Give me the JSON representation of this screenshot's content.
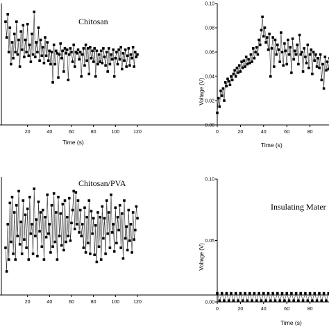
{
  "chart_data": [
    {
      "id": "p1",
      "type": "line",
      "title": "Chitosan",
      "xlabel": "Time (s)",
      "ylabel": "",
      "xlim": [
        0,
        120
      ],
      "xticks": [
        20,
        40,
        60,
        80,
        100,
        120
      ],
      "ylim": [
        0.0,
        0.1
      ],
      "yticks": [],
      "series": [
        {
          "x": [
            0,
            1,
            2,
            3,
            4,
            5,
            6,
            7,
            8,
            9,
            10,
            11,
            12,
            13,
            14,
            15,
            16,
            17,
            18,
            19,
            20,
            21,
            22,
            23,
            24,
            25,
            26,
            27,
            28,
            29,
            30,
            31,
            32,
            33,
            34,
            35,
            36,
            37,
            38,
            39,
            40,
            41,
            42,
            43,
            44,
            45,
            46,
            47,
            48,
            49,
            50,
            51,
            52,
            53,
            54,
            55,
            56,
            57,
            58,
            59,
            60,
            61,
            62,
            63,
            64,
            65,
            66,
            67,
            68,
            69,
            70,
            71,
            72,
            73,
            74,
            75,
            76,
            77,
            78,
            79,
            80,
            81,
            82,
            83,
            84,
            85,
            86,
            87,
            88,
            89,
            90,
            91,
            92,
            93,
            94,
            95,
            96,
            97,
            98,
            99,
            100,
            101,
            102,
            103,
            104,
            105,
            106,
            107,
            108,
            109,
            110,
            111,
            112,
            113,
            114,
            115,
            116,
            117,
            118,
            119,
            120
          ],
          "y": [
            0.085,
            0.072,
            0.091,
            0.06,
            0.08,
            0.05,
            0.068,
            0.055,
            0.075,
            0.06,
            0.085,
            0.058,
            0.07,
            0.048,
            0.077,
            0.062,
            0.082,
            0.056,
            0.07,
            0.06,
            0.083,
            0.057,
            0.066,
            0.052,
            0.075,
            0.058,
            0.093,
            0.056,
            0.068,
            0.06,
            0.08,
            0.053,
            0.07,
            0.057,
            0.064,
            0.051,
            0.072,
            0.057,
            0.068,
            0.053,
            0.061,
            0.05,
            0.06,
            0.035,
            0.066,
            0.05,
            0.061,
            0.059,
            0.039,
            0.058,
            0.067,
            0.055,
            0.061,
            0.044,
            0.063,
            0.059,
            0.062,
            0.037,
            0.058,
            0.063,
            0.06,
            0.052,
            0.066,
            0.048,
            0.06,
            0.059,
            0.062,
            0.054,
            0.06,
            0.04,
            0.058,
            0.063,
            0.049,
            0.066,
            0.053,
            0.063,
            0.042,
            0.064,
            0.055,
            0.061,
            0.052,
            0.063,
            0.04,
            0.061,
            0.05,
            0.058,
            0.052,
            0.061,
            0.051,
            0.063,
            0.056,
            0.049,
            0.06,
            0.044,
            0.063,
            0.05,
            0.058,
            0.054,
            0.062,
            0.04,
            0.055,
            0.06,
            0.05,
            0.062,
            0.054,
            0.064,
            0.046,
            0.059,
            0.053,
            0.062,
            0.048,
            0.057,
            0.063,
            0.049,
            0.058,
            0.055,
            0.064,
            0.048,
            0.06,
            0.056,
            0.058
          ]
        }
      ]
    },
    {
      "id": "p2",
      "type": "line",
      "title": "",
      "xlabel": "Time (s)",
      "ylabel": "Voltage (V)",
      "xlim": [
        0,
        100
      ],
      "xticks": [
        0,
        20,
        40,
        60,
        80
      ],
      "ylim": [
        0.0,
        0.1
      ],
      "yticks": [
        "0.00",
        "0.02",
        "0.04",
        "0.06",
        "0.08",
        "0.10"
      ],
      "series": [
        {
          "x": [
            0,
            1,
            2,
            3,
            4,
            5,
            6,
            7,
            8,
            9,
            10,
            11,
            12,
            13,
            14,
            15,
            16,
            17,
            18,
            19,
            20,
            21,
            22,
            23,
            24,
            25,
            26,
            27,
            28,
            29,
            30,
            31,
            32,
            33,
            34,
            35,
            36,
            37,
            38,
            39,
            40,
            41,
            42,
            43,
            44,
            45,
            46,
            47,
            48,
            49,
            50,
            51,
            52,
            53,
            54,
            55,
            56,
            57,
            58,
            59,
            60,
            61,
            62,
            63,
            64,
            65,
            66,
            67,
            68,
            69,
            70,
            71,
            72,
            73,
            74,
            75,
            76,
            77,
            78,
            79,
            80,
            81,
            82,
            83,
            84,
            85,
            86,
            87,
            88,
            89,
            90,
            91,
            92,
            93,
            94,
            95,
            96,
            97,
            98,
            99,
            100
          ],
          "y": [
            0.01,
            0.022,
            0.015,
            0.028,
            0.024,
            0.03,
            0.02,
            0.035,
            0.032,
            0.038,
            0.036,
            0.033,
            0.04,
            0.037,
            0.042,
            0.045,
            0.04,
            0.047,
            0.043,
            0.049,
            0.044,
            0.052,
            0.047,
            0.053,
            0.048,
            0.056,
            0.05,
            0.054,
            0.051,
            0.058,
            0.052,
            0.063,
            0.055,
            0.06,
            0.064,
            0.058,
            0.07,
            0.066,
            0.078,
            0.089,
            0.073,
            0.08,
            0.068,
            0.072,
            0.062,
            0.075,
            0.04,
            0.063,
            0.072,
            0.048,
            0.07,
            0.058,
            0.066,
            0.062,
            0.052,
            0.076,
            0.06,
            0.049,
            0.067,
            0.061,
            0.05,
            0.07,
            0.058,
            0.064,
            0.043,
            0.071,
            0.054,
            0.061,
            0.058,
            0.066,
            0.05,
            0.074,
            0.058,
            0.06,
            0.044,
            0.063,
            0.056,
            0.051,
            0.066,
            0.047,
            0.058,
            0.062,
            0.042,
            0.06,
            0.053,
            0.058,
            0.048,
            0.055,
            0.047,
            0.058,
            0.037,
            0.05,
            0.03,
            0.056,
            0.045,
            0.052,
            0.046,
            0.055,
            0.049,
            0.054,
            0.05
          ]
        }
      ]
    },
    {
      "id": "p3",
      "type": "line",
      "title": "Chitosan/PVA",
      "xlabel": "Time (s)",
      "ylabel": "",
      "xlim": [
        0,
        120
      ],
      "xticks": [
        20,
        40,
        60,
        80,
        100,
        120
      ],
      "ylim": [
        0.0,
        0.1
      ],
      "yticks": [],
      "series": [
        {
          "x": [
            0,
            1,
            2,
            3,
            4,
            5,
            6,
            7,
            8,
            9,
            10,
            11,
            12,
            13,
            14,
            15,
            16,
            17,
            18,
            19,
            20,
            21,
            22,
            23,
            24,
            25,
            26,
            27,
            28,
            29,
            30,
            31,
            32,
            33,
            34,
            35,
            36,
            37,
            38,
            39,
            40,
            41,
            42,
            43,
            44,
            45,
            46,
            47,
            48,
            49,
            50,
            51,
            52,
            53,
            54,
            55,
            56,
            57,
            58,
            59,
            60,
            61,
            62,
            63,
            64,
            65,
            66,
            67,
            68,
            69,
            70,
            71,
            72,
            73,
            74,
            75,
            76,
            77,
            78,
            79,
            80,
            81,
            82,
            83,
            84,
            85,
            86,
            87,
            88,
            89,
            90,
            91,
            92,
            93,
            94,
            95,
            96,
            97,
            98,
            99,
            100,
            101,
            102,
            103,
            104,
            105,
            106,
            107,
            108,
            109,
            110,
            111,
            112,
            113,
            114,
            115,
            116,
            117,
            118,
            119,
            120
          ],
          "y": [
            0.04,
            0.02,
            0.06,
            0.03,
            0.078,
            0.045,
            0.083,
            0.035,
            0.07,
            0.03,
            0.076,
            0.05,
            0.088,
            0.043,
            0.062,
            0.035,
            0.08,
            0.047,
            0.068,
            0.04,
            0.073,
            0.03,
            0.083,
            0.052,
            0.06,
            0.035,
            0.09,
            0.05,
            0.064,
            0.033,
            0.079,
            0.054,
            0.07,
            0.041,
            0.072,
            0.03,
            0.066,
            0.049,
            0.085,
            0.052,
            0.06,
            0.036,
            0.076,
            0.041,
            0.086,
            0.045,
            0.07,
            0.03,
            0.083,
            0.05,
            0.069,
            0.042,
            0.077,
            0.038,
            0.08,
            0.045,
            0.066,
            0.05,
            0.082,
            0.046,
            0.061,
            0.072,
            0.088,
            0.056,
            0.087,
            0.06,
            0.08,
            0.053,
            0.072,
            0.05,
            0.06,
            0.04,
            0.074,
            0.036,
            0.066,
            0.044,
            0.08,
            0.035,
            0.071,
            0.052,
            0.065,
            0.034,
            0.059,
            0.028,
            0.07,
            0.041,
            0.066,
            0.03,
            0.075,
            0.048,
            0.065,
            0.035,
            0.08,
            0.052,
            0.07,
            0.04,
            0.085,
            0.053,
            0.06,
            0.037,
            0.074,
            0.044,
            0.066,
            0.055,
            0.076,
            0.04,
            0.069,
            0.031,
            0.08,
            0.048,
            0.058,
            0.038,
            0.072,
            0.046,
            0.06,
            0.036,
            0.07,
            0.047,
            0.055,
            0.075,
            0.065
          ]
        }
      ]
    },
    {
      "id": "p4",
      "type": "line",
      "title": "Insulating Mater",
      "xlabel": "Time (s)",
      "ylabel": "Voltage (V)",
      "xlim": [
        0,
        100
      ],
      "xticks": [
        0,
        20,
        40,
        60,
        80
      ],
      "ylim": [
        0.0,
        0.1
      ],
      "yticks": [
        "0.00",
        "0.05",
        "0.10"
      ],
      "series": [
        {
          "x": [
            0,
            2,
            4,
            6,
            8,
            10,
            12,
            14,
            16,
            18,
            20,
            22,
            24,
            26,
            28,
            30,
            32,
            34,
            36,
            38,
            40,
            42,
            44,
            46,
            48,
            50,
            52,
            54,
            56,
            58,
            60,
            62,
            64,
            66,
            68,
            70,
            72,
            74,
            76,
            78,
            80,
            82,
            84,
            86,
            88,
            90,
            92,
            94,
            96,
            98,
            100
          ],
          "y": [
            0.007,
            0.001,
            0.007,
            0.001,
            0.007,
            0.001,
            0.007,
            0.001,
            0.007,
            0.001,
            0.007,
            0.001,
            0.007,
            0.001,
            0.007,
            0.001,
            0.007,
            0.001,
            0.007,
            0.001,
            0.007,
            0.001,
            0.007,
            0.001,
            0.007,
            0.001,
            0.007,
            0.001,
            0.007,
            0.001,
            0.007,
            0.001,
            0.007,
            0.001,
            0.007,
            0.001,
            0.007,
            0.001,
            0.007,
            0.001,
            0.007,
            0.001,
            0.007,
            0.001,
            0.007,
            0.001,
            0.007,
            0.001,
            0.007,
            0.001,
            0.007
          ]
        }
      ]
    }
  ]
}
